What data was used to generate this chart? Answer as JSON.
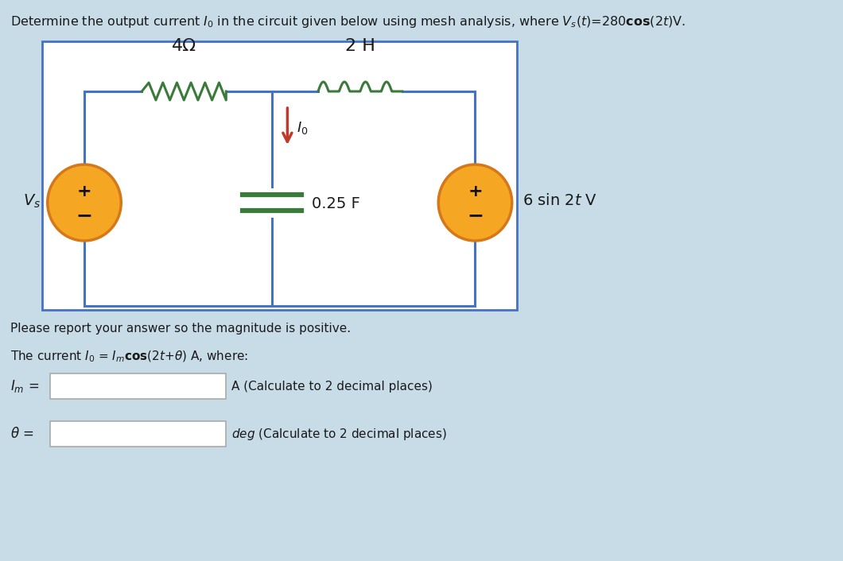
{
  "bg_color": "#c8dce8",
  "circuit_bg": "#ffffff",
  "wire_color": "#4472c4",
  "component_color": "#3a7a3a",
  "source_fill": "#f5a623",
  "source_edge": "#d4781a",
  "arrow_color": "#c0392b",
  "text_color": "#1a1a1a",
  "input_box_color": "#ffffff",
  "input_box_border": "#888888",
  "resistor_label": "4Ω",
  "inductor_label": "2 H",
  "capacitor_label": "0.25 F",
  "source_right_label": "6 sin 2t V",
  "current_label": "I₀"
}
